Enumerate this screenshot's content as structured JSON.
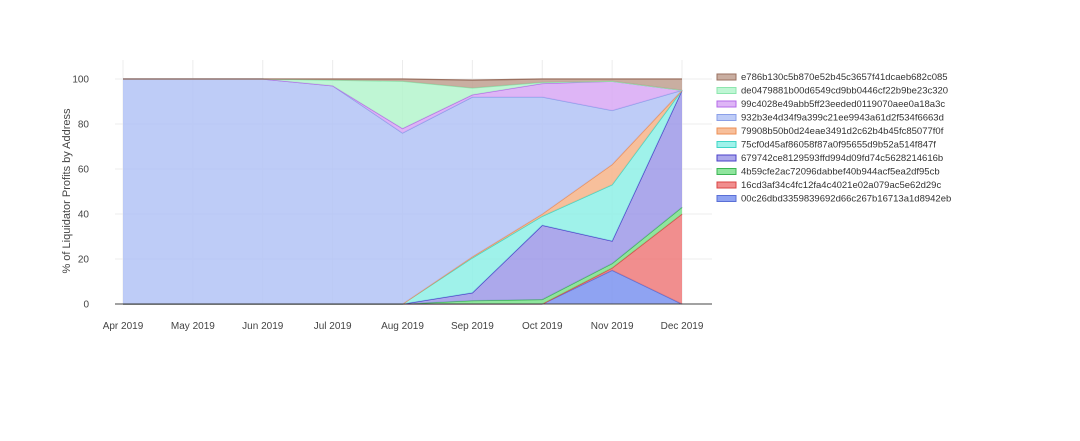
{
  "chart_data": {
    "type": "area",
    "stacked": true,
    "normalized_percent": true,
    "ylabel": "% of Liquidator Profits by Address",
    "xlabel": "",
    "ylim": [
      0,
      100
    ],
    "yticks": [
      "0",
      "20",
      "40",
      "60",
      "80",
      "100"
    ],
    "categories": [
      "Apr 2019",
      "May 2019",
      "Jun 2019",
      "Jul 2019",
      "Aug 2019",
      "Sep 2019",
      "Oct 2019",
      "Nov 2019",
      "Dec 2019"
    ],
    "grid": true,
    "legend_position": "right",
    "series": [
      {
        "name": "00c26dbd3359839692d66c267b16713a1d8942eb",
        "fill": "#7b93f0",
        "line": "#5a6fd6",
        "values": [
          0,
          0,
          0,
          0,
          0,
          0,
          0,
          15,
          0
        ]
      },
      {
        "name": "16cd3af34c4fc12fa4c4021e02a079ac5e62d29c",
        "fill": "#ef7a7a",
        "line": "#d94444",
        "values": [
          0,
          0,
          0,
          0,
          0,
          0,
          0,
          1,
          40
        ]
      },
      {
        "name": "4b59cfe2ac72096dabbef40b944acf5ea2df95cb",
        "fill": "#7be08c",
        "line": "#3cb455",
        "values": [
          0,
          0,
          0,
          0,
          0,
          1.5,
          2,
          2,
          3
        ]
      },
      {
        "name": "679742ce8129593ffd994d09fd74c5628214616b",
        "fill": "#9d99e8",
        "line": "#4a3fc8",
        "values": [
          0,
          0,
          0,
          0,
          0,
          3.5,
          33,
          10,
          52
        ]
      },
      {
        "name": "75cf0d45af86058f87a0f95655d9b52a514f847f",
        "fill": "#8ef0e6",
        "line": "#3fd6c6",
        "values": [
          0,
          0,
          0,
          0,
          0,
          15.5,
          4,
          25,
          0
        ]
      },
      {
        "name": "79908b50b0d24eae3491d2c62b4b45fc85077f0f",
        "fill": "#f6b48a",
        "line": "#ee8f55",
        "values": [
          0,
          0,
          0,
          0,
          0,
          0.5,
          1,
          9,
          0
        ]
      },
      {
        "name": "932b3e4d34f9a399c21ee9943a61d2f534f6663d",
        "fill": "#b3c3f6",
        "line": "#8a9fe8",
        "values": [
          100,
          100,
          100,
          97,
          76,
          71,
          52,
          24,
          0
        ]
      },
      {
        "name": "99c4028e49abb5ff23eeded0119070aee0a18a3c",
        "fill": "#d8a8f4",
        "line": "#b46ae8",
        "values": [
          0,
          0,
          0,
          0,
          2,
          1,
          6,
          13,
          0
        ]
      },
      {
        "name": "de0479881b00d6549cd9bb0446cf22b9be23c320",
        "fill": "#b4f5cc",
        "line": "#8de6ae",
        "values": [
          0,
          0,
          0,
          2.5,
          21,
          3,
          0.5,
          0,
          0
        ]
      },
      {
        "name": "e786b130c5b870e52b45c3657f41dcaeb682c085",
        "fill": "#c0a090",
        "line": "#9a7060",
        "values": [
          0,
          0,
          0,
          0.5,
          1,
          3.5,
          1.5,
          1,
          5
        ]
      }
    ]
  }
}
